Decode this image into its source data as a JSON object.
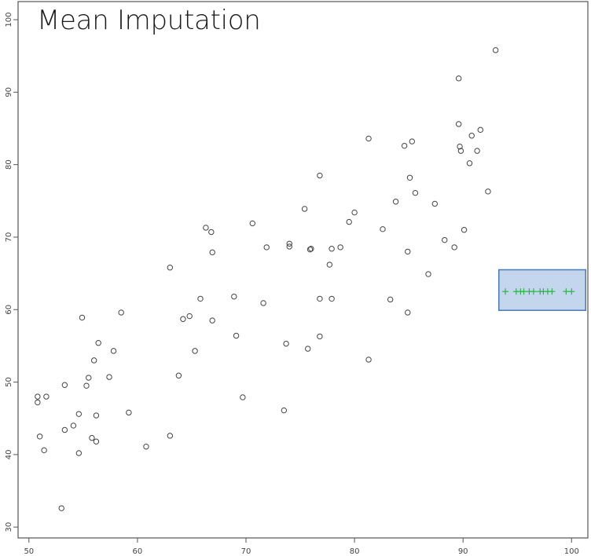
{
  "chart_data": {
    "type": "scatter",
    "title": "Mean Imputation",
    "xlabel": "",
    "ylabel": "",
    "xlim": [
      49,
      101.5
    ],
    "ylim": [
      28.5,
      102.5
    ],
    "x_ticks": [
      50,
      60,
      70,
      80,
      90,
      100
    ],
    "y_ticks": [
      30,
      40,
      50,
      60,
      70,
      80,
      90,
      100
    ],
    "grid": false,
    "series": [
      {
        "marker": "circle",
        "color": "#444444",
        "points": [
          [
            50.8,
            48.0
          ],
          [
            50.8,
            47.2
          ],
          [
            51.0,
            42.5
          ],
          [
            51.4,
            40.6
          ],
          [
            51.6,
            48.0
          ],
          [
            53.0,
            32.6
          ],
          [
            53.3,
            49.6
          ],
          [
            53.3,
            43.4
          ],
          [
            54.1,
            44.0
          ],
          [
            54.6,
            45.6
          ],
          [
            54.6,
            40.2
          ],
          [
            54.9,
            58.9
          ],
          [
            55.3,
            49.5
          ],
          [
            55.5,
            50.6
          ],
          [
            55.8,
            42.3
          ],
          [
            56.0,
            53.0
          ],
          [
            56.2,
            45.4
          ],
          [
            56.2,
            41.8
          ],
          [
            56.4,
            55.4
          ],
          [
            57.4,
            50.7
          ],
          [
            57.8,
            54.3
          ],
          [
            58.5,
            59.6
          ],
          [
            59.2,
            45.8
          ],
          [
            60.8,
            41.1
          ],
          [
            63.0,
            65.8
          ],
          [
            63.0,
            42.6
          ],
          [
            63.8,
            50.9
          ],
          [
            64.2,
            58.7
          ],
          [
            64.8,
            59.1
          ],
          [
            65.3,
            54.3
          ],
          [
            65.8,
            61.5
          ],
          [
            66.3,
            71.3
          ],
          [
            66.8,
            70.7
          ],
          [
            66.9,
            67.9
          ],
          [
            66.9,
            58.5
          ],
          [
            68.9,
            61.8
          ],
          [
            69.1,
            56.4
          ],
          [
            69.7,
            47.9
          ],
          [
            70.6,
            71.9
          ],
          [
            71.6,
            60.9
          ],
          [
            71.9,
            68.6
          ],
          [
            73.5,
            46.1
          ],
          [
            73.7,
            55.3
          ],
          [
            74.0,
            69.1
          ],
          [
            74.0,
            68.7
          ],
          [
            75.4,
            73.9
          ],
          [
            75.7,
            54.6
          ],
          [
            75.9,
            68.3
          ],
          [
            76.0,
            68.4
          ],
          [
            76.8,
            78.5
          ],
          [
            76.8,
            61.5
          ],
          [
            76.8,
            56.3
          ],
          [
            77.7,
            66.2
          ],
          [
            77.9,
            68.4
          ],
          [
            77.9,
            61.5
          ],
          [
            78.7,
            68.6
          ],
          [
            79.5,
            72.1
          ],
          [
            80.0,
            73.4
          ],
          [
            81.3,
            83.6
          ],
          [
            81.3,
            53.1
          ],
          [
            82.6,
            71.1
          ],
          [
            83.3,
            61.4
          ],
          [
            83.8,
            74.9
          ],
          [
            84.6,
            82.6
          ],
          [
            84.9,
            68.0
          ],
          [
            84.9,
            59.6
          ],
          [
            85.1,
            78.2
          ],
          [
            85.3,
            83.2
          ],
          [
            85.6,
            76.1
          ],
          [
            86.8,
            64.9
          ],
          [
            87.4,
            74.6
          ],
          [
            88.3,
            69.6
          ],
          [
            89.2,
            68.6
          ],
          [
            89.6,
            91.9
          ],
          [
            89.6,
            85.6
          ],
          [
            89.7,
            82.5
          ],
          [
            89.8,
            81.9
          ],
          [
            90.1,
            71.0
          ],
          [
            90.6,
            80.2
          ],
          [
            90.8,
            84.0
          ],
          [
            91.3,
            81.9
          ],
          [
            91.6,
            84.8
          ],
          [
            92.3,
            76.3
          ],
          [
            93.0,
            95.8
          ]
        ]
      },
      {
        "marker": "cross",
        "color": "#2db34a",
        "points": [
          [
            93.9,
            62.5
          ],
          [
            94.9,
            62.5
          ],
          [
            95.3,
            62.5
          ],
          [
            95.6,
            62.5
          ],
          [
            96.1,
            62.5
          ],
          [
            96.5,
            62.5
          ],
          [
            97.1,
            62.5
          ],
          [
            97.4,
            62.5
          ],
          [
            97.8,
            62.5
          ],
          [
            98.2,
            62.5
          ],
          [
            99.5,
            62.5
          ],
          [
            100.0,
            62.5
          ]
        ]
      }
    ],
    "annotation": {
      "type": "highlight-box",
      "x_range": [
        93.3,
        101.3
      ],
      "y_range": [
        59.9,
        65.5
      ],
      "fill": "#c3d6ee",
      "stroke": "#4a7ab5"
    }
  }
}
